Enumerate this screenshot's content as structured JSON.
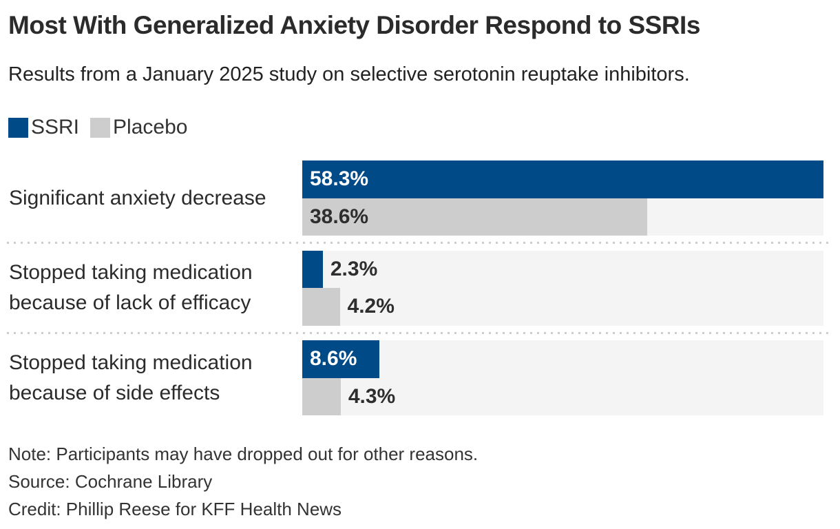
{
  "header": {
    "title": "Most With Generalized Anxiety Disorder Respond to SSRIs",
    "subtitle": "Results from a January 2025 study on selective serotonin reuptake inhibitors."
  },
  "legend": [
    {
      "label": "SSRI",
      "color": "#004a87"
    },
    {
      "label": "Placebo",
      "color": "#cdcdcd"
    }
  ],
  "colors": {
    "ssri": "#004a87",
    "placebo": "#cdcdcd",
    "track": "#f4f4f4",
    "value_on_ssri": "#ffffff",
    "value_dark": "#2e2e2e",
    "separator": "#cdcdcd",
    "title_text": "#2b2b2b"
  },
  "chart_data": {
    "type": "bar",
    "orientation": "horizontal",
    "title": "Most With Generalized Anxiety Disorder Respond to SSRIs",
    "subtitle": "Results from a January 2025 study on selective serotonin reuptake inhibitors.",
    "unit": "percent",
    "xlim": [
      0,
      58.3
    ],
    "grid": false,
    "legend_position": "top-left",
    "categories": [
      "Significant anxiety decrease",
      "Stopped taking medication because of lack of efficacy",
      "Stopped taking medication because of side effects"
    ],
    "series": [
      {
        "name": "SSRI",
        "values": [
          58.3,
          2.3,
          8.6
        ]
      },
      {
        "name": "Placebo",
        "values": [
          38.6,
          4.2,
          4.3
        ]
      }
    ],
    "rows": [
      {
        "label_lines": [
          "Significant anxiety decrease"
        ],
        "ssri": 58.3,
        "placebo": 38.6,
        "ssri_label": "58.3%",
        "placebo_label": "38.6%"
      },
      {
        "label_lines": [
          "Stopped taking medication",
          "because of lack of efficacy"
        ],
        "ssri": 2.3,
        "placebo": 4.2,
        "ssri_label": "2.3%",
        "placebo_label": "4.2%"
      },
      {
        "label_lines": [
          "Stopped taking medication",
          "because of side effects"
        ],
        "ssri": 8.6,
        "placebo": 4.3,
        "ssri_label": "8.6%",
        "placebo_label": "4.3%"
      }
    ]
  },
  "footer": {
    "note": "Note: Participants may have dropped out for other reasons.",
    "source": "Source: Cochrane Library",
    "credit": "Credit: Phillip Reese for KFF Health News"
  }
}
